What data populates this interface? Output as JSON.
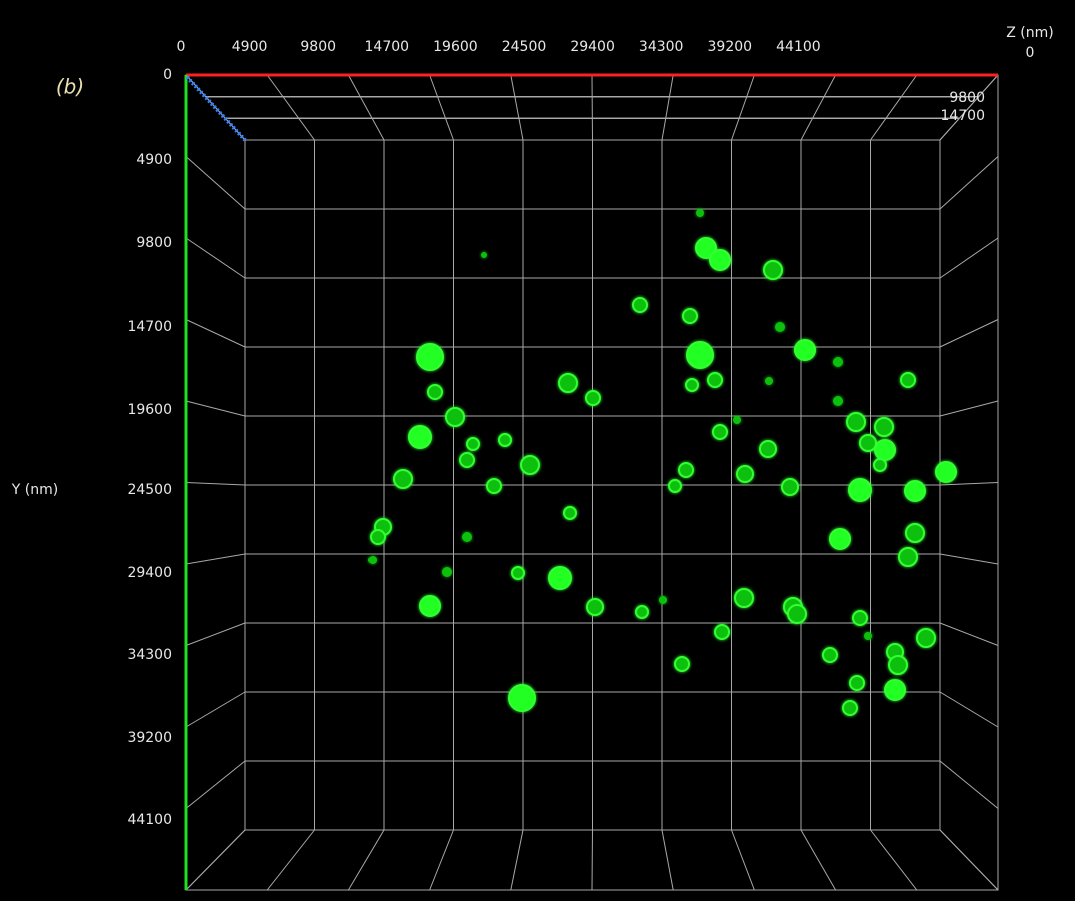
{
  "panel_label": "(b)",
  "x_axis": {
    "ticks": [
      "0",
      "4900",
      "9800",
      "14700",
      "19600",
      "24500",
      "29400",
      "34300",
      "39200",
      "44100"
    ]
  },
  "y_axis": {
    "label": "Y (nm)",
    "ticks": [
      "0",
      "4900",
      "9800",
      "14700",
      "19600",
      "24500",
      "29400",
      "34300",
      "39200",
      "44100"
    ]
  },
  "z_axis": {
    "label": "Z (nm)",
    "ticks": [
      "0",
      "9800",
      "14700"
    ]
  }
}
